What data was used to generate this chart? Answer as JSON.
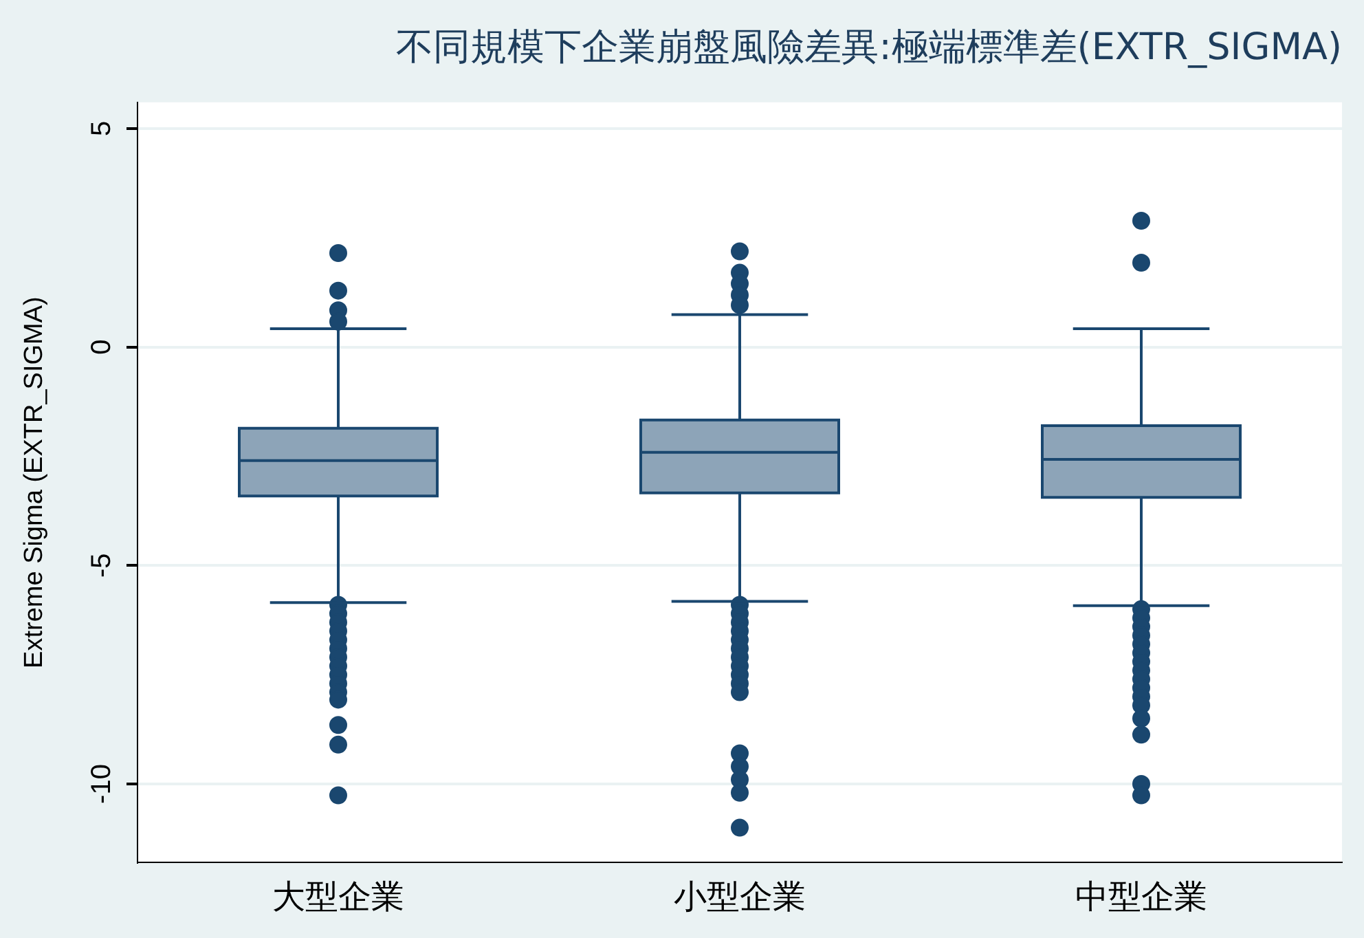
{
  "chart_data": {
    "type": "box",
    "title": "不同規模下企業崩盤風險差異:極端標準差(EXTR_SIGMA)",
    "ylabel": "Extreme Sigma (EXTR_SIGMA)",
    "categories": [
      "大型企業",
      "小型企業",
      "中型企業"
    ],
    "ylim": [
      -11.8,
      5.6
    ],
    "yticks": [
      -10,
      -5,
      0,
      5
    ],
    "grid": "y",
    "legend": false,
    "series": [
      {
        "color": "#8da4b8",
        "boxes": [
          {
            "low": -5.85,
            "q1": -3.41,
            "median": -2.6,
            "q3": -1.86,
            "high": 0.42,
            "outliers": [
              2.15,
              1.29,
              0.84,
              0.58,
              -5.9,
              -6.1,
              -6.3,
              -6.5,
              -6.7,
              -6.9,
              -7.1,
              -7.3,
              -7.5,
              -7.7,
              -7.9,
              -8.07,
              -8.65,
              -9.1,
              -10.26
            ]
          },
          {
            "low": -5.82,
            "q1": -3.34,
            "median": -2.41,
            "q3": -1.67,
            "high": 0.74,
            "outliers": [
              2.19,
              1.7,
              1.45,
              1.19,
              0.96,
              -5.9,
              -6.1,
              -6.3,
              -6.5,
              -6.7,
              -6.9,
              -7.1,
              -7.3,
              -7.5,
              -7.7,
              -7.9,
              -9.3,
              -9.6,
              -9.9,
              -10.2,
              -11.0
            ]
          },
          {
            "low": -5.92,
            "q1": -3.44,
            "median": -2.57,
            "q3": -1.8,
            "high": 0.42,
            "outliers": [
              2.89,
              1.93,
              -6.0,
              -6.2,
              -6.4,
              -6.6,
              -6.8,
              -7.0,
              -7.2,
              -7.4,
              -7.6,
              -7.8,
              -8.0,
              -8.2,
              -8.5,
              -8.87,
              -10.0,
              -10.26
            ]
          }
        ]
      }
    ]
  }
}
